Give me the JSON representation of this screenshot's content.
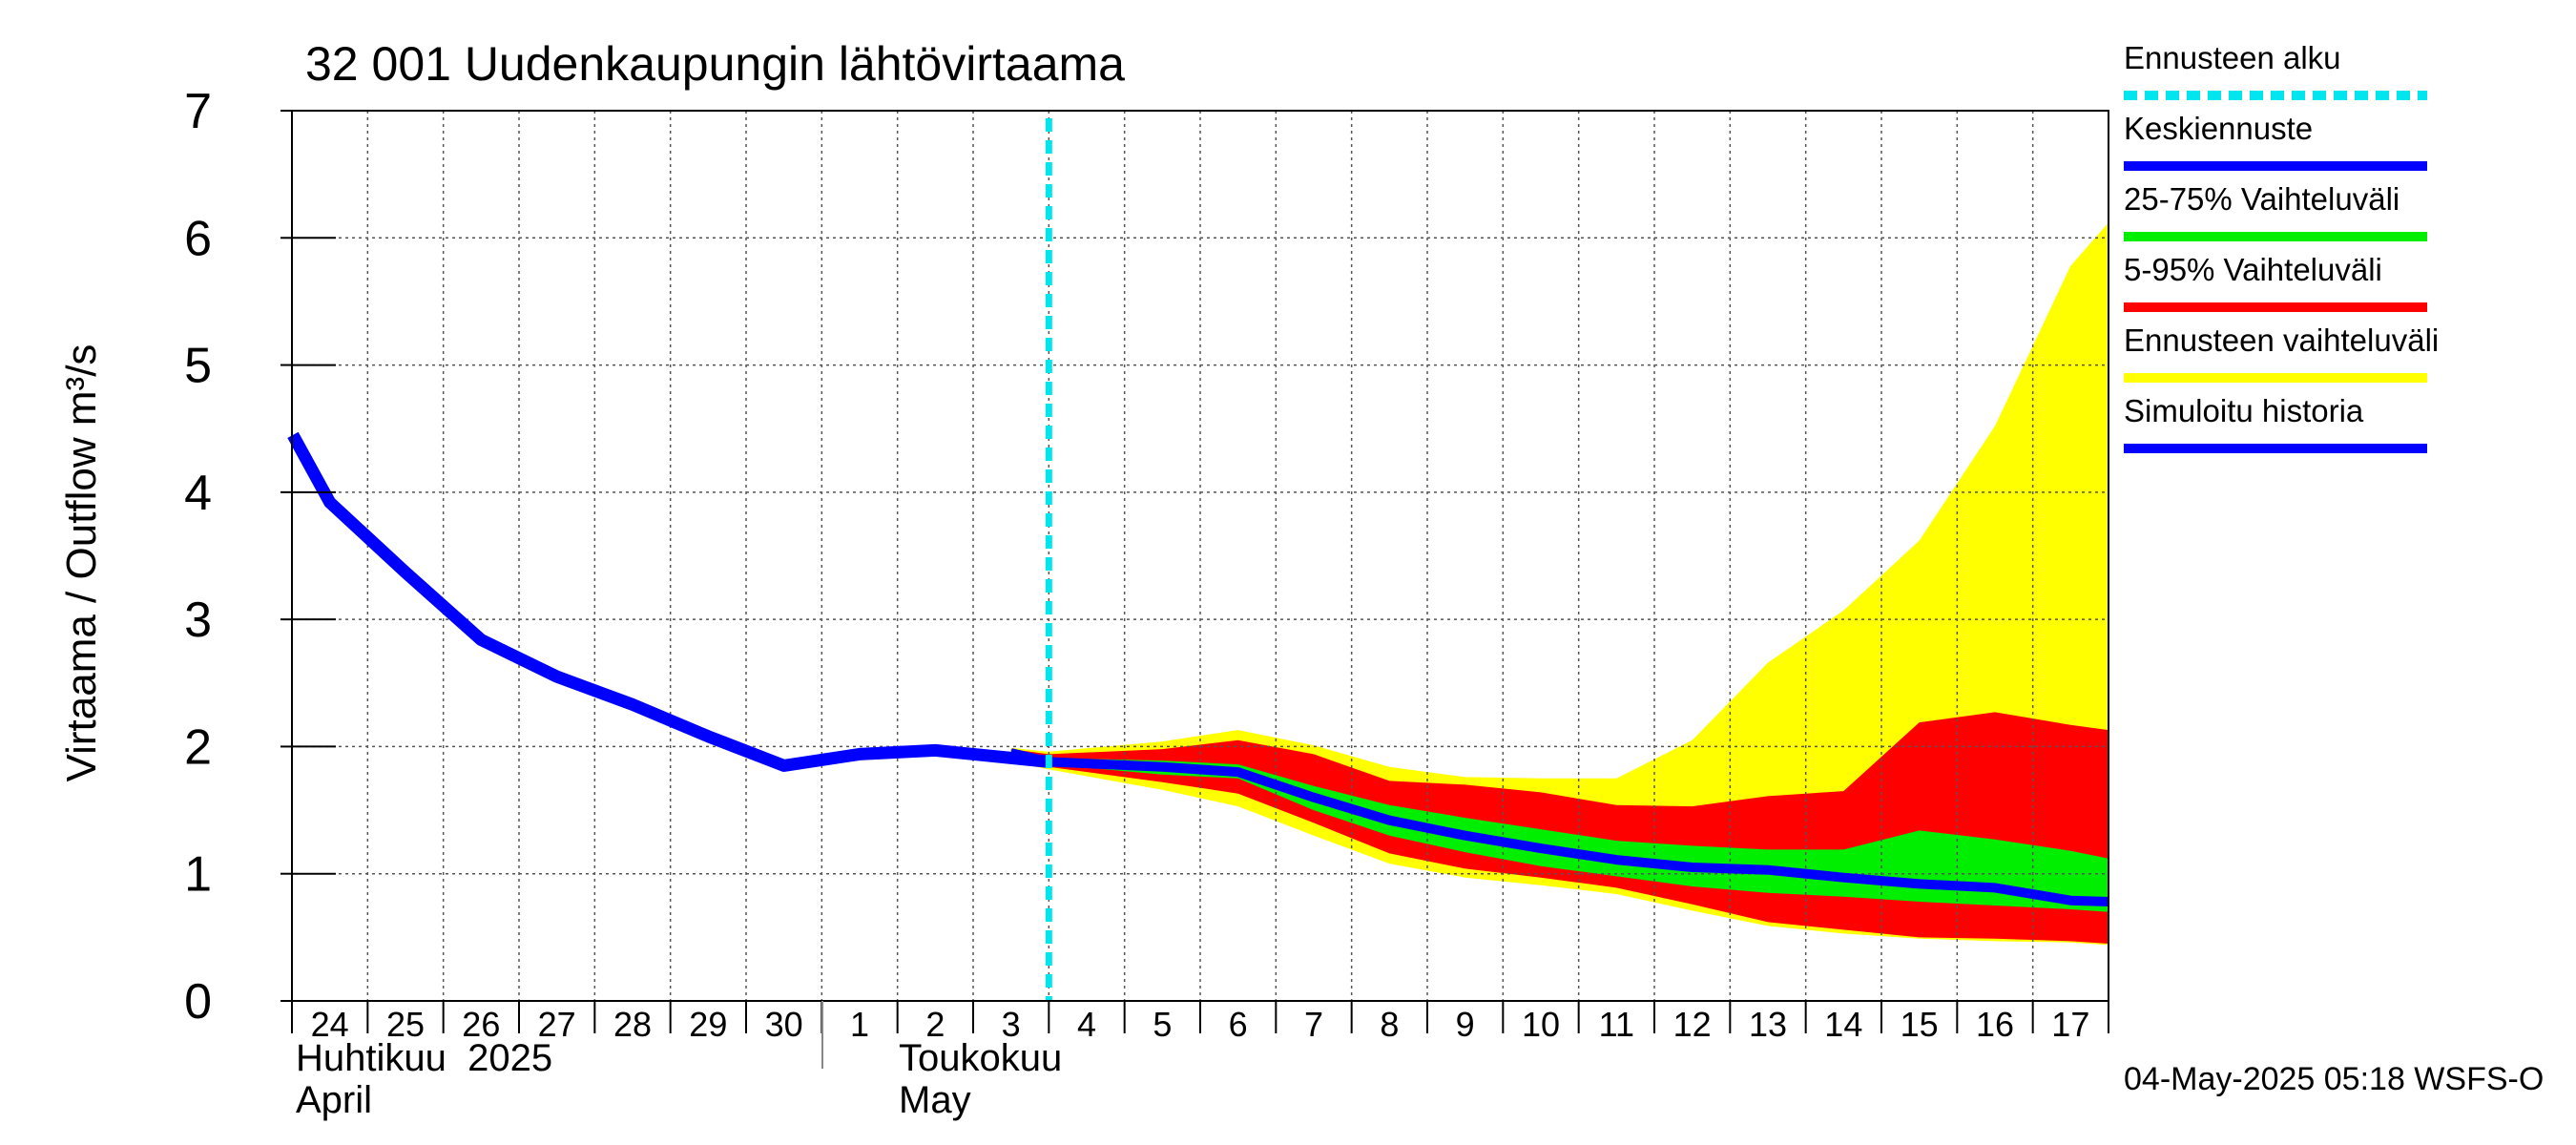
{
  "chart_data": {
    "type": "area",
    "title": "32 001 Uudenkaupungin lähtövirtaama",
    "ylabel": "Virtaama / Outflow    m³/s",
    "ylim": [
      0,
      7
    ],
    "y_ticks": [
      "0",
      "1",
      "2",
      "3",
      "4",
      "5",
      "6",
      "7"
    ],
    "x_ticks": [
      "24",
      "25",
      "26",
      "27",
      "28",
      "29",
      "30",
      "1",
      "2",
      "3",
      "4",
      "5",
      "6",
      "7",
      "8",
      "9",
      "10",
      "11",
      "12",
      "13",
      "14",
      "15",
      "16",
      "17"
    ],
    "month_labels": [
      {
        "fi": "Huhtikuu  2025",
        "en": "April"
      },
      {
        "fi": "Toukokuu",
        "en": "May"
      }
    ],
    "forecast_start_day": 10.0,
    "colors": {
      "history": "#0000ff",
      "median": "#0000ff",
      "band_25_75": "#00ee00",
      "band_5_95": "#ff0000",
      "band_full": "#ffff00",
      "forecast_start": "#00e5ee",
      "grid": "#555555"
    },
    "history": {
      "x": [
        -0.5,
        0.5,
        1.5,
        2.5,
        3.5,
        4.5,
        5.5,
        6.5,
        7.5,
        8.5,
        9.5,
        10.0
      ],
      "values": [
        4.45,
        3.92,
        3.37,
        2.84,
        2.55,
        2.33,
        2.08,
        1.85,
        1.94,
        1.97,
        1.91,
        1.88
      ]
    },
    "forecast": {
      "x": [
        9.5,
        10.0,
        11.5,
        12.5,
        13.5,
        14.5,
        15.5,
        16.5,
        17.5,
        18.5,
        19.5,
        20.5,
        21.5,
        22.5,
        23.5
      ],
      "median": [
        1.95,
        1.88,
        1.84,
        1.8,
        1.6,
        1.42,
        1.3,
        1.2,
        1.11,
        1.05,
        1.03,
        0.97,
        0.92,
        0.89,
        0.79
      ],
      "p25": [
        1.92,
        1.86,
        1.78,
        1.75,
        1.5,
        1.3,
        1.17,
        1.06,
        0.98,
        0.9,
        0.85,
        0.82,
        0.78,
        0.75,
        0.72
      ],
      "p75": [
        1.97,
        1.91,
        1.89,
        1.86,
        1.69,
        1.54,
        1.44,
        1.35,
        1.26,
        1.22,
        1.19,
        1.19,
        1.34,
        1.27,
        1.18
      ],
      "p5": [
        1.9,
        1.84,
        1.72,
        1.63,
        1.4,
        1.16,
        1.04,
        0.97,
        0.89,
        0.76,
        0.62,
        0.56,
        0.5,
        0.49,
        0.47
      ],
      "p95": [
        1.98,
        1.94,
        1.98,
        2.05,
        1.94,
        1.73,
        1.7,
        1.64,
        1.54,
        1.53,
        1.61,
        1.65,
        2.19,
        2.27,
        2.17
      ],
      "min": [
        1.88,
        1.82,
        1.66,
        1.53,
        1.3,
        1.08,
        0.97,
        0.91,
        0.84,
        0.71,
        0.59,
        0.53,
        0.49,
        0.47,
        0.46
      ],
      "max": [
        1.99,
        1.96,
        2.04,
        2.13,
        2.01,
        1.84,
        1.76,
        1.75,
        1.75,
        2.05,
        2.66,
        3.07,
        3.62,
        4.52,
        5.78
      ]
    },
    "forecast_end": {
      "max": 6.12,
      "p95": 2.13,
      "p75": 1.12,
      "median": 0.78,
      "p25": 0.7,
      "p5": 0.45,
      "min": 0.44
    },
    "legend": [
      {
        "label": "Ennusteen alku",
        "color": "#00e5ee",
        "style": "dashed"
      },
      {
        "label": "Keskiennuste",
        "color": "#0000ff",
        "style": "solid"
      },
      {
        "label": "25-75% Vaihteluväli",
        "color": "#00ee00",
        "style": "solid"
      },
      {
        "label": "5-95% Vaihteluväli",
        "color": "#ff0000",
        "style": "solid"
      },
      {
        "label": "Ennusteen vaihteluväli",
        "color": "#ffff00",
        "style": "solid"
      },
      {
        "label": "Simuloitu historia",
        "color": "#0000ff",
        "style": "solid"
      }
    ],
    "legend_position": "right",
    "footer": "04-May-2025 05:18 WSFS-O"
  }
}
